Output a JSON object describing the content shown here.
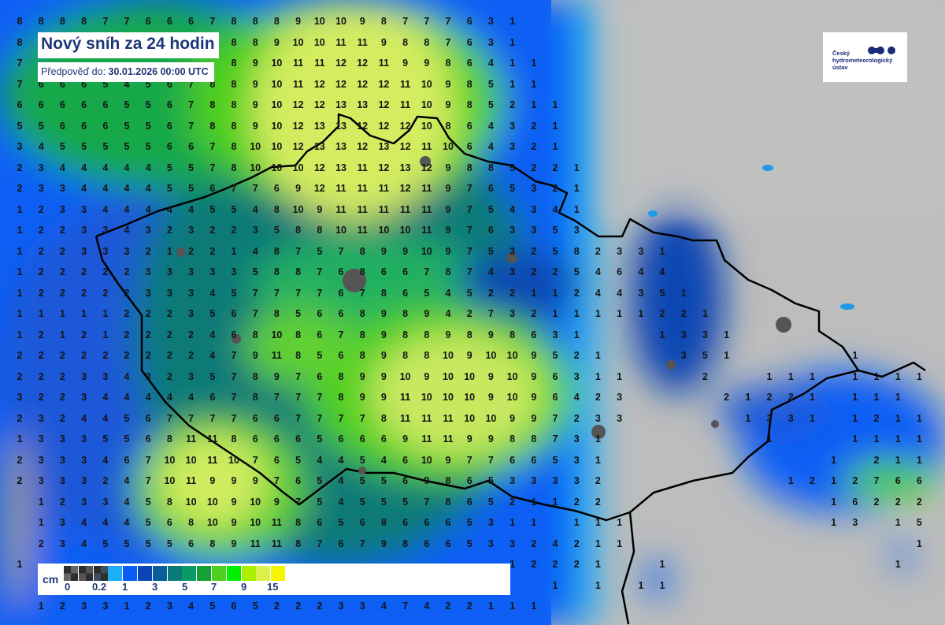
{
  "title": "Nový sníh za 24 hodin",
  "subtitle": {
    "label": "Předpověď do:",
    "value": "30.01.2026 00:00 UTC"
  },
  "logo": {
    "text": "Český hydrometeorologický ústav",
    "lines": [
      "Český",
      "hydrometeorologický",
      "ústav"
    ]
  },
  "legend": {
    "unit": "cm",
    "swatches": [
      {
        "color": "#666666",
        "pattern": "checker"
      },
      {
        "color": "#555555",
        "pattern": "checker"
      },
      {
        "color": "#3c4e5e",
        "pattern": "checker"
      },
      {
        "color": "#1eaef5"
      },
      {
        "color": "#0a5ef5"
      },
      {
        "color": "#0a46b4"
      },
      {
        "color": "#0a5e9a"
      },
      {
        "color": "#0a7a78"
      },
      {
        "color": "#0a9a68"
      },
      {
        "color": "#14a032"
      },
      {
        "color": "#50d01e"
      },
      {
        "color": "#00f000"
      },
      {
        "color": "#aaf000"
      },
      {
        "color": "#dcf050"
      },
      {
        "color": "#f5f500"
      }
    ],
    "labels": [
      "0",
      "0.2",
      "1",
      "3",
      "5",
      "7",
      "9",
      "15"
    ]
  },
  "grid_values": [
    [
      8,
      8,
      8,
      8,
      7,
      7,
      6,
      6,
      6,
      7,
      8,
      8,
      8,
      9,
      10,
      10,
      9,
      8,
      7,
      7,
      7,
      6,
      3,
      1
    ],
    [
      8,
      null,
      null,
      null,
      null,
      null,
      null,
      null,
      null,
      null,
      8,
      8,
      9,
      10,
      10,
      11,
      11,
      9,
      8,
      8,
      7,
      6,
      3,
      1
    ],
    [
      7,
      null,
      null,
      null,
      null,
      null,
      null,
      null,
      null,
      null,
      8,
      9,
      10,
      11,
      11,
      12,
      12,
      11,
      9,
      9,
      8,
      6,
      4,
      1,
      1
    ],
    [
      7,
      6,
      6,
      6,
      5,
      4,
      5,
      6,
      7,
      8,
      8,
      9,
      10,
      11,
      12,
      12,
      12,
      12,
      11,
      10,
      9,
      8,
      5,
      1,
      1
    ],
    [
      6,
      6,
      6,
      6,
      6,
      5,
      5,
      6,
      7,
      8,
      8,
      9,
      10,
      12,
      12,
      13,
      13,
      12,
      11,
      10,
      9,
      8,
      5,
      2,
      1,
      1
    ],
    [
      5,
      5,
      6,
      6,
      6,
      5,
      5,
      6,
      7,
      8,
      8,
      9,
      10,
      12,
      13,
      13,
      12,
      12,
      12,
      10,
      8,
      6,
      4,
      3,
      2,
      1
    ],
    [
      3,
      4,
      5,
      5,
      5,
      5,
      5,
      6,
      6,
      7,
      8,
      10,
      10,
      12,
      13,
      13,
      12,
      13,
      12,
      11,
      10,
      6,
      4,
      3,
      2,
      1
    ],
    [
      2,
      3,
      4,
      4,
      4,
      4,
      4,
      5,
      5,
      7,
      8,
      10,
      10,
      10,
      12,
      13,
      11,
      12,
      13,
      12,
      9,
      8,
      8,
      5,
      2,
      2,
      1
    ],
    [
      2,
      3,
      3,
      4,
      4,
      4,
      4,
      5,
      5,
      6,
      7,
      7,
      6,
      9,
      12,
      11,
      11,
      11,
      12,
      11,
      9,
      7,
      6,
      5,
      3,
      2,
      1
    ],
    [
      1,
      2,
      3,
      3,
      4,
      4,
      4,
      4,
      4,
      5,
      5,
      4,
      8,
      10,
      9,
      11,
      11,
      11,
      11,
      11,
      9,
      7,
      5,
      4,
      3,
      4,
      1
    ],
    [
      1,
      2,
      2,
      3,
      3,
      4,
      3,
      2,
      3,
      2,
      2,
      3,
      5,
      8,
      8,
      10,
      11,
      10,
      10,
      11,
      9,
      7,
      6,
      3,
      3,
      5,
      3
    ],
    [
      1,
      2,
      2,
      3,
      3,
      3,
      2,
      1,
      2,
      2,
      1,
      4,
      8,
      7,
      5,
      7,
      8,
      9,
      9,
      10,
      9,
      7,
      5,
      3,
      2,
      5,
      8,
      2,
      3,
      3,
      1
    ],
    [
      1,
      2,
      2,
      2,
      2,
      2,
      3,
      3,
      3,
      3,
      3,
      5,
      8,
      8,
      7,
      6,
      8,
      6,
      6,
      7,
      8,
      7,
      4,
      3,
      2,
      2,
      5,
      4,
      6,
      4,
      4
    ],
    [
      1,
      2,
      2,
      2,
      2,
      2,
      3,
      3,
      3,
      4,
      5,
      7,
      7,
      7,
      7,
      6,
      7,
      8,
      6,
      5,
      4,
      5,
      2,
      2,
      1,
      1,
      2,
      4,
      4,
      3,
      5,
      1
    ],
    [
      1,
      1,
      1,
      1,
      1,
      2,
      2,
      2,
      3,
      5,
      6,
      7,
      8,
      5,
      6,
      6,
      8,
      9,
      8,
      9,
      4,
      2,
      7,
      3,
      2,
      1,
      1,
      1,
      1,
      1,
      2,
      2,
      1
    ],
    [
      1,
      2,
      1,
      2,
      1,
      2,
      2,
      2,
      2,
      4,
      6,
      8,
      10,
      8,
      6,
      7,
      8,
      9,
      8,
      8,
      9,
      8,
      9,
      8,
      6,
      3,
      1,
      null,
      null,
      null,
      1,
      3,
      3,
      1
    ],
    [
      2,
      2,
      2,
      2,
      2,
      2,
      2,
      2,
      2,
      4,
      7,
      9,
      11,
      8,
      5,
      6,
      8,
      9,
      8,
      8,
      10,
      9,
      10,
      10,
      9,
      5,
      2,
      1,
      null,
      null,
      null,
      3,
      5,
      1,
      null,
      null,
      null,
      null,
      null,
      1
    ],
    [
      2,
      2,
      2,
      3,
      3,
      4,
      3,
      2,
      3,
      5,
      7,
      8,
      9,
      7,
      6,
      8,
      9,
      9,
      10,
      9,
      10,
      10,
      9,
      10,
      9,
      6,
      3,
      1,
      1,
      null,
      null,
      null,
      2,
      null,
      null,
      1,
      1,
      1,
      null,
      1,
      1,
      1,
      1
    ],
    [
      3,
      2,
      2,
      3,
      4,
      4,
      4,
      4,
      4,
      6,
      7,
      8,
      7,
      7,
      7,
      8,
      9,
      9,
      11,
      10,
      10,
      10,
      9,
      10,
      9,
      6,
      4,
      2,
      3,
      null,
      null,
      null,
      null,
      2,
      1,
      2,
      2,
      1,
      null,
      1,
      1,
      1
    ],
    [
      2,
      3,
      2,
      4,
      4,
      5,
      6,
      7,
      7,
      7,
      7,
      6,
      6,
      7,
      7,
      7,
      7,
      8,
      11,
      11,
      11,
      10,
      10,
      9,
      9,
      7,
      2,
      3,
      3,
      null,
      null,
      null,
      null,
      null,
      1,
      3,
      3,
      1,
      null,
      1,
      2,
      1,
      1
    ],
    [
      1,
      3,
      3,
      3,
      5,
      5,
      6,
      8,
      11,
      11,
      8,
      6,
      6,
      6,
      5,
      6,
      6,
      6,
      9,
      11,
      11,
      9,
      9,
      8,
      8,
      7,
      3,
      1,
      null,
      null,
      null,
      null,
      null,
      null,
      null,
      1,
      null,
      null,
      null,
      1,
      1,
      1,
      1
    ],
    [
      2,
      3,
      3,
      3,
      4,
      6,
      7,
      10,
      10,
      11,
      10,
      7,
      6,
      5,
      4,
      4,
      5,
      4,
      6,
      10,
      9,
      7,
      7,
      6,
      6,
      5,
      3,
      1,
      null,
      null,
      null,
      null,
      null,
      null,
      null,
      null,
      null,
      null,
      1,
      null,
      2,
      1,
      1
    ],
    [
      2,
      3,
      3,
      3,
      2,
      4,
      7,
      10,
      11,
      9,
      9,
      9,
      7,
      6,
      5,
      4,
      5,
      5,
      6,
      9,
      8,
      6,
      5,
      3,
      3,
      3,
      3,
      2,
      null,
      null,
      null,
      null,
      null,
      null,
      null,
      null,
      1,
      2,
      1,
      2,
      7,
      6,
      6
    ],
    [
      null,
      1,
      2,
      3,
      3,
      4,
      5,
      8,
      10,
      10,
      9,
      10,
      9,
      7,
      5,
      4,
      5,
      5,
      5,
      7,
      8,
      6,
      5,
      2,
      1,
      1,
      2,
      2,
      null,
      null,
      null,
      null,
      null,
      null,
      null,
      null,
      null,
      null,
      1,
      6,
      2,
      2,
      2
    ],
    [
      null,
      1,
      3,
      4,
      4,
      4,
      5,
      6,
      8,
      10,
      9,
      10,
      11,
      8,
      6,
      5,
      6,
      8,
      6,
      6,
      6,
      5,
      3,
      1,
      1,
      null,
      1,
      1,
      1,
      null,
      null,
      null,
      null,
      null,
      null,
      null,
      null,
      null,
      1,
      3,
      null,
      1,
      5
    ],
    [
      null,
      2,
      3,
      4,
      5,
      5,
      5,
      5,
      6,
      8,
      9,
      11,
      11,
      8,
      7,
      6,
      7,
      9,
      8,
      6,
      6,
      5,
      3,
      3,
      2,
      4,
      2,
      1,
      1,
      null,
      null,
      null,
      null,
      null,
      null,
      null,
      null,
      null,
      null,
      null,
      null,
      null,
      1
    ],
    [
      1,
      null,
      null,
      null,
      null,
      null,
      null,
      null,
      null,
      null,
      null,
      null,
      null,
      null,
      null,
      null,
      null,
      null,
      null,
      null,
      null,
      null,
      null,
      1,
      2,
      2,
      2,
      1,
      null,
      null,
      1,
      null,
      null,
      null,
      null,
      null,
      null,
      null,
      null,
      null,
      null,
      1
    ],
    [
      null,
      null,
      null,
      null,
      null,
      null,
      null,
      null,
      null,
      null,
      null,
      null,
      null,
      null,
      null,
      null,
      null,
      null,
      null,
      null,
      null,
      null,
      null,
      null,
      null,
      1,
      null,
      1,
      null,
      1,
      1
    ],
    [
      null,
      1,
      2,
      3,
      3,
      1,
      2,
      3,
      4,
      5,
      6,
      5,
      2,
      2,
      2,
      3,
      3,
      4,
      7,
      4,
      2,
      2,
      1,
      1,
      1
    ]
  ]
}
